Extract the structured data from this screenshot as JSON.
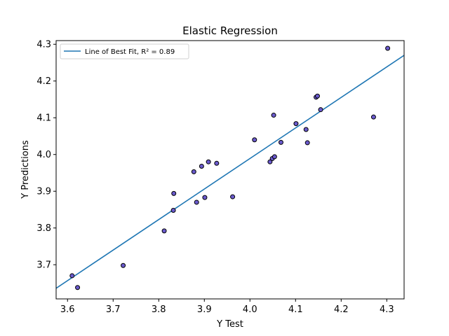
{
  "chart_data": {
    "type": "scatter",
    "title": "Elastic Regression",
    "xlabel": "Y Test",
    "ylabel": "Y Predictions",
    "xlim": [
      3.575,
      4.338
    ],
    "ylim": [
      3.607,
      4.31
    ],
    "xticks": [
      "3.6",
      "3.7",
      "3.8",
      "3.9",
      "4.0",
      "4.1",
      "4.2",
      "4.3"
    ],
    "yticks": [
      "3.7",
      "3.8",
      "3.9",
      "4.0",
      "4.1",
      "4.2",
      "4.3"
    ],
    "grid": false,
    "legend_position": "top-left",
    "series": [
      {
        "kind": "points",
        "color": "#6a5acd",
        "edge_color": "#000000",
        "points": [
          {
            "x": 3.61,
            "y": 3.67
          },
          {
            "x": 3.622,
            "y": 3.638
          },
          {
            "x": 3.722,
            "y": 3.698
          },
          {
            "x": 3.812,
            "y": 3.792
          },
          {
            "x": 3.832,
            "y": 3.848
          },
          {
            "x": 3.833,
            "y": 3.894
          },
          {
            "x": 3.877,
            "y": 3.953
          },
          {
            "x": 3.883,
            "y": 3.87
          },
          {
            "x": 3.894,
            "y": 3.968
          },
          {
            "x": 3.901,
            "y": 3.883
          },
          {
            "x": 3.909,
            "y": 3.98
          },
          {
            "x": 3.927,
            "y": 3.976
          },
          {
            "x": 3.962,
            "y": 3.885
          },
          {
            "x": 4.01,
            "y": 4.04
          },
          {
            "x": 4.044,
            "y": 3.98
          },
          {
            "x": 4.049,
            "y": 3.989
          },
          {
            "x": 4.054,
            "y": 3.994
          },
          {
            "x": 4.052,
            "y": 4.107
          },
          {
            "x": 4.068,
            "y": 4.033
          },
          {
            "x": 4.101,
            "y": 4.084
          },
          {
            "x": 4.123,
            "y": 4.068
          },
          {
            "x": 4.126,
            "y": 4.032
          },
          {
            "x": 4.145,
            "y": 4.156
          },
          {
            "x": 4.148,
            "y": 4.159
          },
          {
            "x": 4.155,
            "y": 4.122
          },
          {
            "x": 4.271,
            "y": 4.102
          },
          {
            "x": 4.302,
            "y": 4.289
          }
        ]
      },
      {
        "kind": "line",
        "name": "Line of Best Fit, R² = 0.89",
        "color": "#1f77b4",
        "x": [
          3.575,
          4.338
        ],
        "y": [
          3.636,
          4.27
        ]
      }
    ]
  }
}
